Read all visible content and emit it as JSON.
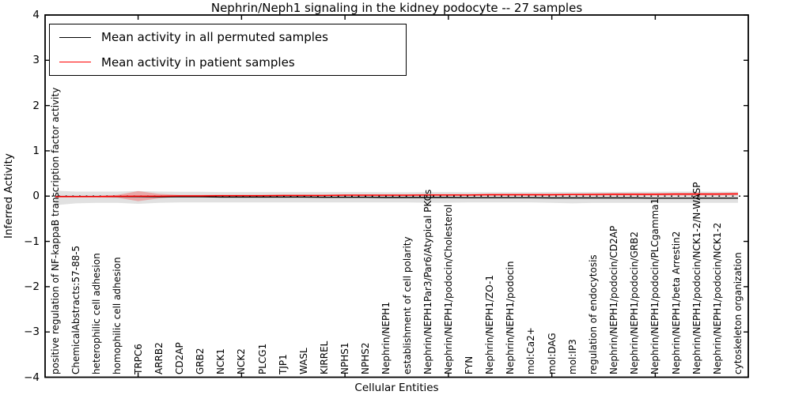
{
  "chart_data": {
    "type": "line",
    "title": "Nephrin/Neph1 signaling in the kidney podocyte -- 27 samples",
    "xlabel": "Cellular Entities",
    "ylabel": "Inferred Activity",
    "ylim": [
      -4,
      4
    ],
    "yticks": [
      4,
      3,
      2,
      1,
      0,
      -1,
      -2,
      -3,
      -4
    ],
    "ytick_labels": [
      "4",
      "3",
      "2",
      "1",
      "0",
      "−1",
      "−2",
      "−3",
      "−4"
    ],
    "xtick_major_indices": [
      4,
      9,
      14,
      19,
      24,
      29
    ],
    "grid": false,
    "legend_position": "upper-left",
    "categories": [
      "positive regulation of NF-kappaB transcription factor activity",
      "ChemicalAbstracts:57-88-5",
      "heterophilic cell adhesion",
      "homophilic cell adhesion",
      "TRPC6",
      "ARRB2",
      "CD2AP",
      "GRB2",
      "NCK1",
      "NCK2",
      "PLCG1",
      "TJP1",
      "WASL",
      "KIRREL",
      "NPHS1",
      "NPHS2",
      "Nephrin/NEPH1",
      "establishment of cell polarity",
      "Nephrin/NEPH1Par3/Par6/Atypical PKCs",
      "Nephrin/NEPH1/podocin/Cholesterol",
      "FYN",
      "Nephrin/NEPH1/ZO-1",
      "Nephrin/NEPH1/podocin",
      "mol:Ca2+",
      "mol:DAG",
      "mol:IP3",
      "regulation of endocytosis",
      "Nephrin/NEPH1/podocin/CD2AP",
      "Nephrin/NEPH1/podocin/GRB2",
      "Nephrin/NEPH1/podocin/PLCgamma1",
      "Nephrin/NEPH1/beta Arrestin2",
      "Nephrin/NEPH1/podocin/NCK1-2/N-WASP",
      "Nephrin/NEPH1/podocin/NCK1-2",
      "cytoskeleton organization"
    ],
    "series": [
      {
        "name": "Mean activity in all permuted samples",
        "color": "#000000",
        "style": "solid",
        "values": [
          -0.01,
          -0.01,
          -0.01,
          -0.01,
          -0.01,
          -0.015,
          -0.015,
          -0.015,
          -0.02,
          -0.02,
          -0.02,
          -0.02,
          -0.02,
          -0.025,
          -0.025,
          -0.025,
          -0.03,
          -0.03,
          -0.03,
          -0.03,
          -0.035,
          -0.035,
          -0.035,
          -0.035,
          -0.04,
          -0.04,
          -0.04,
          -0.04,
          -0.04,
          -0.045,
          -0.045,
          -0.045,
          -0.045,
          -0.045
        ]
      },
      {
        "name": "Mean activity in patient samples",
        "color": "#ff0000",
        "style": "solid",
        "values": [
          -0.01,
          -0.01,
          -0.01,
          -0.005,
          0,
          0,
          0.005,
          0.005,
          0.01,
          0.01,
          0.01,
          0.015,
          0.015,
          0.015,
          0.02,
          0.02,
          0.02,
          0.02,
          0.025,
          0.025,
          0.025,
          0.03,
          0.03,
          0.03,
          0.03,
          0.035,
          0.035,
          0.04,
          0.04,
          0.04,
          0.045,
          0.045,
          0.045,
          0.05
        ]
      }
    ],
    "reference_line": {
      "y": 0,
      "style": "dotted",
      "color": "#000000"
    },
    "bands": [
      {
        "name": "permuted-range",
        "color": "#c8c8c8",
        "opacity": 0.55,
        "upper": [
          0.12,
          0.1,
          0.1,
          0.1,
          0.11,
          0.1,
          0.095,
          0.095,
          0.09,
          0.09,
          0.09,
          0.09,
          0.09,
          0.09,
          0.09,
          0.09,
          0.085,
          0.085,
          0.09,
          0.09,
          0.085,
          0.085,
          0.085,
          0.085,
          0.09,
          0.09,
          0.09,
          0.09,
          0.095,
          0.095,
          0.1,
          0.1,
          0.095,
          0.095
        ],
        "lower": [
          -0.2,
          -0.16,
          -0.15,
          -0.15,
          -0.17,
          -0.15,
          -0.14,
          -0.14,
          -0.14,
          -0.14,
          -0.14,
          -0.14,
          -0.14,
          -0.14,
          -0.14,
          -0.14,
          -0.14,
          -0.14,
          -0.145,
          -0.145,
          -0.14,
          -0.14,
          -0.14,
          -0.14,
          -0.15,
          -0.16,
          -0.15,
          -0.15,
          -0.15,
          -0.15,
          -0.15,
          -0.15,
          -0.15,
          -0.15
        ]
      },
      {
        "name": "patient-range",
        "color": "#ff0000",
        "opacity": 0.25,
        "upper": [
          0.01,
          0.01,
          0.01,
          0.025,
          0.11,
          0.05,
          0.025,
          0.025,
          0.03,
          0.03,
          0.03,
          0.035,
          0.035,
          0.035,
          0.04,
          0.04,
          0.04,
          0.04,
          0.045,
          0.045,
          0.045,
          0.05,
          0.05,
          0.05,
          0.05,
          0.055,
          0.06,
          0.065,
          0.065,
          0.065,
          0.075,
          0.075,
          0.075,
          0.08
        ],
        "lower": [
          -0.03,
          -0.03,
          -0.03,
          -0.035,
          -0.11,
          -0.05,
          -0.015,
          -0.015,
          -0.01,
          -0.01,
          -0.01,
          -0.005,
          -0.005,
          -0.005,
          0,
          0,
          0,
          0,
          0.005,
          0.005,
          0.005,
          0.01,
          0.01,
          0.01,
          0.01,
          0.015,
          0.01,
          0.015,
          0.015,
          0.015,
          0.015,
          0.015,
          0.015,
          0.02
        ]
      }
    ],
    "frame_color": "#000000"
  }
}
